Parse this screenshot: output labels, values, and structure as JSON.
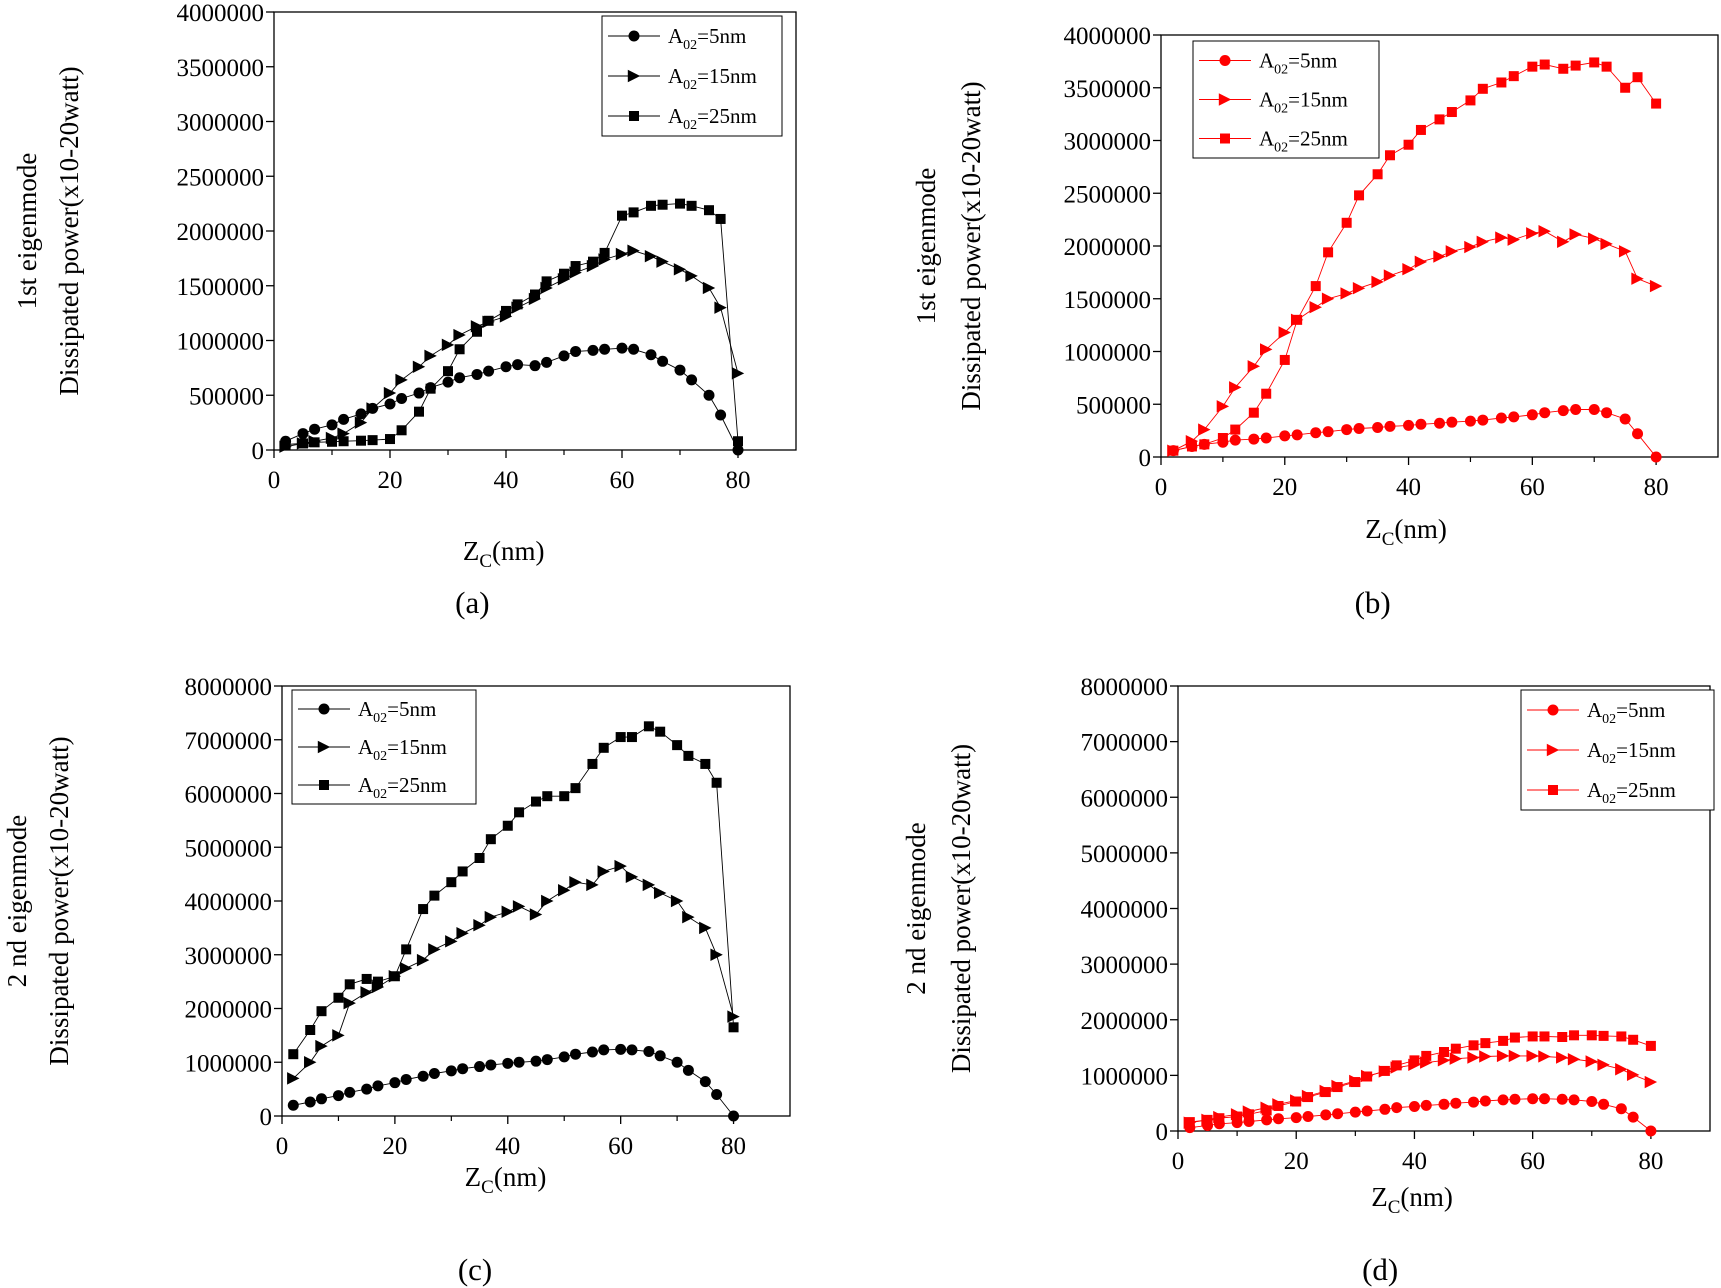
{
  "chart_data": [
    {
      "id": "a",
      "type": "line",
      "panel_label": "(a)",
      "ylabel": [
        "1st eigenmode",
        "Dissipated power(x10-20watt)"
      ],
      "xlabel": {
        "main": "Z",
        "sub": "C",
        "rest": "(nm)"
      },
      "xlim": [
        0,
        90
      ],
      "ylim": [
        0,
        4000000
      ],
      "xticks": [
        "0",
        "20",
        "40",
        "60",
        "80"
      ],
      "yticks": [
        "0",
        "500000",
        "1000000",
        "1500000",
        "2000000",
        "2500000",
        "3000000",
        "3500000",
        "4000000"
      ],
      "legend_position": "top-right",
      "color": "#000000",
      "series": [
        {
          "legend": {
            "prefix": "A",
            "sub": "02",
            "suffix": "=5nm"
          },
          "marker": "circle",
          "x": [
            2,
            5,
            7,
            10,
            12,
            15,
            17,
            20,
            22,
            25,
            27,
            30,
            32,
            35,
            37,
            40,
            42,
            45,
            47,
            50,
            52,
            55,
            57,
            60,
            62,
            65,
            67,
            70,
            72,
            75,
            77,
            80
          ],
          "y": [
            80000,
            150000,
            190000,
            230000,
            280000,
            330000,
            380000,
            420000,
            470000,
            520000,
            570000,
            620000,
            660000,
            690000,
            720000,
            760000,
            780000,
            770000,
            800000,
            860000,
            900000,
            910000,
            920000,
            930000,
            920000,
            870000,
            810000,
            730000,
            640000,
            500000,
            320000,
            0
          ]
        },
        {
          "legend": {
            "prefix": "A",
            "sub": "02",
            "suffix": "=15nm"
          },
          "marker": "triangle",
          "x": [
            2,
            5,
            7,
            10,
            12,
            15,
            17,
            20,
            22,
            25,
            27,
            30,
            32,
            35,
            37,
            40,
            42,
            45,
            47,
            50,
            52,
            55,
            57,
            60,
            62,
            65,
            67,
            70,
            72,
            75,
            77,
            80
          ],
          "y": [
            30000,
            60000,
            80000,
            110000,
            150000,
            250000,
            380000,
            520000,
            640000,
            760000,
            860000,
            960000,
            1050000,
            1130000,
            1170000,
            1220000,
            1300000,
            1380000,
            1480000,
            1560000,
            1620000,
            1680000,
            1740000,
            1790000,
            1820000,
            1770000,
            1720000,
            1650000,
            1590000,
            1480000,
            1300000,
            700000
          ]
        },
        {
          "legend": {
            "prefix": "A",
            "sub": "02",
            "suffix": "=25nm"
          },
          "marker": "square",
          "x": [
            2,
            5,
            7,
            10,
            12,
            15,
            17,
            20,
            22,
            25,
            27,
            30,
            32,
            35,
            37,
            40,
            42,
            45,
            47,
            50,
            52,
            55,
            57,
            60,
            62,
            65,
            67,
            70,
            72,
            75,
            77,
            80
          ],
          "y": [
            50000,
            60000,
            70000,
            75000,
            80000,
            85000,
            90000,
            100000,
            180000,
            350000,
            560000,
            720000,
            920000,
            1080000,
            1180000,
            1270000,
            1330000,
            1420000,
            1540000,
            1610000,
            1680000,
            1720000,
            1800000,
            2140000,
            2170000,
            2230000,
            2240000,
            2250000,
            2230000,
            2190000,
            2110000,
            80000
          ]
        }
      ]
    },
    {
      "id": "b",
      "type": "line",
      "panel_label": "(b)",
      "ylabel": [
        "1st eigenmode",
        "Dissipated power(x10-20watt)"
      ],
      "xlabel": {
        "main": "Z",
        "sub": "C",
        "rest": "(nm)"
      },
      "xlim": [
        0,
        90
      ],
      "ylim": [
        0,
        4000000
      ],
      "xticks": [
        "0",
        "20",
        "40",
        "60",
        "80"
      ],
      "yticks": [
        "0",
        "500000",
        "1000000",
        "1500000",
        "2000000",
        "2500000",
        "3000000",
        "3500000",
        "4000000"
      ],
      "legend_position": "top-left",
      "color": "#ff0000",
      "series": [
        {
          "legend": {
            "prefix": "A",
            "sub": "02",
            "suffix": "=5nm"
          },
          "marker": "circle",
          "x": [
            2,
            5,
            7,
            10,
            12,
            15,
            17,
            20,
            22,
            25,
            27,
            30,
            32,
            35,
            37,
            40,
            42,
            45,
            47,
            50,
            52,
            55,
            57,
            60,
            62,
            65,
            67,
            70,
            72,
            75,
            77,
            80
          ],
          "y": [
            60000,
            100000,
            120000,
            140000,
            160000,
            170000,
            180000,
            200000,
            210000,
            230000,
            240000,
            260000,
            270000,
            280000,
            290000,
            300000,
            310000,
            320000,
            330000,
            340000,
            350000,
            370000,
            380000,
            400000,
            420000,
            440000,
            450000,
            450000,
            420000,
            360000,
            220000,
            0
          ]
        },
        {
          "legend": {
            "prefix": "A",
            "sub": "02",
            "suffix": "=15nm"
          },
          "marker": "triangle",
          "x": [
            2,
            5,
            7,
            10,
            12,
            15,
            17,
            20,
            22,
            25,
            27,
            30,
            32,
            35,
            37,
            40,
            42,
            45,
            47,
            50,
            52,
            55,
            57,
            60,
            62,
            65,
            67,
            70,
            72,
            75,
            77,
            80
          ],
          "y": [
            60000,
            150000,
            260000,
            480000,
            660000,
            860000,
            1020000,
            1180000,
            1300000,
            1420000,
            1500000,
            1550000,
            1600000,
            1660000,
            1720000,
            1780000,
            1850000,
            1900000,
            1950000,
            1990000,
            2040000,
            2080000,
            2060000,
            2120000,
            2140000,
            2040000,
            2110000,
            2070000,
            2020000,
            1950000,
            1690000,
            1620000
          ]
        },
        {
          "legend": {
            "prefix": "A",
            "sub": "02",
            "suffix": "=25nm"
          },
          "marker": "square",
          "x": [
            2,
            5,
            7,
            10,
            12,
            15,
            17,
            20,
            22,
            25,
            27,
            30,
            32,
            35,
            37,
            40,
            42,
            45,
            47,
            50,
            52,
            55,
            57,
            60,
            62,
            65,
            67,
            70,
            72,
            75,
            77,
            80
          ],
          "y": [
            60000,
            100000,
            120000,
            180000,
            260000,
            420000,
            600000,
            920000,
            1300000,
            1620000,
            1940000,
            2220000,
            2480000,
            2680000,
            2860000,
            2960000,
            3100000,
            3200000,
            3270000,
            3380000,
            3490000,
            3550000,
            3610000,
            3700000,
            3720000,
            3680000,
            3710000,
            3740000,
            3700000,
            3500000,
            3600000,
            3350000
          ]
        }
      ]
    },
    {
      "id": "c",
      "type": "line",
      "panel_label": "(c)",
      "ylabel": [
        "2 nd eigenmode",
        "Dissipated power(x10-20watt)"
      ],
      "xlabel": {
        "main": "Z",
        "sub": "C",
        "rest": "(nm)"
      },
      "xlim": [
        0,
        90
      ],
      "ylim": [
        0,
        8000000
      ],
      "xticks": [
        "0",
        "20",
        "40",
        "60",
        "80"
      ],
      "yticks": [
        "0",
        "1000000",
        "2000000",
        "3000000",
        "4000000",
        "5000000",
        "6000000",
        "7000000",
        "8000000"
      ],
      "legend_position": "top-left",
      "color": "#000000",
      "series": [
        {
          "legend": {
            "prefix": "A",
            "sub": "02",
            "suffix": "=5nm"
          },
          "marker": "circle",
          "x": [
            2,
            5,
            7,
            10,
            12,
            15,
            17,
            20,
            22,
            25,
            27,
            30,
            32,
            35,
            37,
            40,
            42,
            45,
            47,
            50,
            52,
            55,
            57,
            60,
            62,
            65,
            67,
            70,
            72,
            75,
            77,
            80
          ],
          "y": [
            200000,
            260000,
            320000,
            380000,
            440000,
            500000,
            560000,
            620000,
            680000,
            740000,
            790000,
            840000,
            880000,
            920000,
            950000,
            980000,
            1000000,
            1020000,
            1050000,
            1100000,
            1150000,
            1190000,
            1230000,
            1240000,
            1230000,
            1200000,
            1120000,
            1000000,
            850000,
            640000,
            400000,
            0
          ]
        },
        {
          "legend": {
            "prefix": "A",
            "sub": "02",
            "suffix": "=15nm"
          },
          "marker": "triangle",
          "x": [
            2,
            5,
            7,
            10,
            12,
            15,
            17,
            20,
            22,
            25,
            27,
            30,
            32,
            35,
            37,
            40,
            42,
            45,
            47,
            50,
            52,
            55,
            57,
            60,
            62,
            65,
            67,
            70,
            72,
            75,
            77,
            80
          ],
          "y": [
            700000,
            1000000,
            1300000,
            1500000,
            2100000,
            2300000,
            2400000,
            2600000,
            2750000,
            2900000,
            3100000,
            3250000,
            3400000,
            3550000,
            3700000,
            3800000,
            3900000,
            3750000,
            4000000,
            4200000,
            4350000,
            4300000,
            4550000,
            4650000,
            4450000,
            4300000,
            4150000,
            4000000,
            3700000,
            3500000,
            3000000,
            1850000
          ]
        },
        {
          "legend": {
            "prefix": "A",
            "sub": "02",
            "suffix": "=25nm"
          },
          "marker": "square",
          "x": [
            2,
            5,
            7,
            10,
            12,
            15,
            17,
            20,
            22,
            25,
            27,
            30,
            32,
            35,
            37,
            40,
            42,
            45,
            47,
            50,
            52,
            55,
            57,
            60,
            62,
            65,
            67,
            70,
            72,
            75,
            77,
            80
          ],
          "y": [
            1150000,
            1600000,
            1950000,
            2200000,
            2450000,
            2550000,
            2500000,
            2600000,
            3100000,
            3850000,
            4100000,
            4350000,
            4550000,
            4800000,
            5150000,
            5400000,
            5650000,
            5850000,
            5950000,
            5950000,
            6100000,
            6550000,
            6850000,
            7050000,
            7050000,
            7250000,
            7150000,
            6900000,
            6700000,
            6550000,
            6200000,
            1650000
          ]
        }
      ]
    },
    {
      "id": "d",
      "type": "line",
      "panel_label": "(d)",
      "ylabel": [
        "2 nd eigenmode",
        "Dissipated power(x10-20watt)"
      ],
      "xlabel": {
        "main": "Z",
        "sub": "C",
        "rest": "(nm)"
      },
      "xlim": [
        0,
        90
      ],
      "ylim": [
        0,
        8000000
      ],
      "xticks": [
        "0",
        "20",
        "40",
        "60",
        "80"
      ],
      "yticks": [
        "0",
        "1000000",
        "2000000",
        "3000000",
        "4000000",
        "5000000",
        "6000000",
        "7000000",
        "8000000"
      ],
      "legend_position": "top-right",
      "color": "#ff0000",
      "series": [
        {
          "legend": {
            "prefix": "A",
            "sub": "02",
            "suffix": "=5nm"
          },
          "marker": "circle",
          "x": [
            2,
            5,
            7,
            10,
            12,
            15,
            17,
            20,
            22,
            25,
            27,
            30,
            32,
            35,
            37,
            40,
            42,
            45,
            47,
            50,
            52,
            55,
            57,
            60,
            62,
            65,
            67,
            70,
            72,
            75,
            77,
            80
          ],
          "y": [
            60000,
            100000,
            130000,
            150000,
            170000,
            200000,
            220000,
            240000,
            260000,
            290000,
            310000,
            340000,
            360000,
            390000,
            420000,
            440000,
            460000,
            480000,
            500000,
            520000,
            540000,
            560000,
            570000,
            580000,
            580000,
            570000,
            560000,
            530000,
            480000,
            400000,
            250000,
            0
          ]
        },
        {
          "legend": {
            "prefix": "A",
            "sub": "02",
            "suffix": "=15nm"
          },
          "marker": "triangle",
          "x": [
            2,
            5,
            7,
            10,
            12,
            15,
            17,
            20,
            22,
            25,
            27,
            30,
            32,
            35,
            37,
            40,
            42,
            45,
            47,
            50,
            52,
            55,
            57,
            60,
            62,
            65,
            67,
            70,
            72,
            75,
            77,
            80
          ],
          "y": [
            150000,
            200000,
            250000,
            300000,
            350000,
            420000,
            480000,
            550000,
            630000,
            720000,
            810000,
            900000,
            990000,
            1070000,
            1140000,
            1190000,
            1230000,
            1270000,
            1300000,
            1320000,
            1340000,
            1350000,
            1350000,
            1350000,
            1340000,
            1320000,
            1290000,
            1250000,
            1190000,
            1110000,
            1010000,
            880000
          ]
        },
        {
          "legend": {
            "prefix": "A",
            "sub": "02",
            "suffix": "=25nm"
          },
          "marker": "square",
          "x": [
            2,
            5,
            7,
            10,
            12,
            15,
            17,
            20,
            22,
            25,
            27,
            30,
            32,
            35,
            37,
            40,
            42,
            45,
            47,
            50,
            52,
            55,
            57,
            60,
            62,
            65,
            67,
            70,
            72,
            75,
            77,
            80
          ],
          "y": [
            160000,
            200000,
            230000,
            260000,
            300000,
            370000,
            450000,
            530000,
            610000,
            700000,
            790000,
            880000,
            980000,
            1080000,
            1180000,
            1270000,
            1350000,
            1420000,
            1480000,
            1540000,
            1580000,
            1620000,
            1680000,
            1700000,
            1700000,
            1690000,
            1720000,
            1720000,
            1710000,
            1700000,
            1640000,
            1530000
          ]
        }
      ]
    }
  ]
}
